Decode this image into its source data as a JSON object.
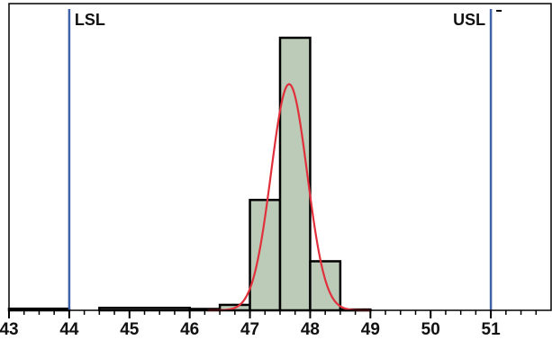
{
  "chart_data": {
    "type": "bar",
    "subtype": "histogram-with-normal-fit",
    "xlim": [
      43,
      52
    ],
    "ylim": [
      0,
      100
    ],
    "x_ticks": [
      "43",
      "44",
      "45",
      "46",
      "47",
      "48",
      "49",
      "50",
      "51"
    ],
    "bins": [
      {
        "x0": 43.0,
        "x1": 44.0,
        "value": 0.6
      },
      {
        "x0": 44.5,
        "x1": 46.0,
        "value": 0.9
      },
      {
        "x0": 46.0,
        "x1": 46.5,
        "value": 0.5
      },
      {
        "x0": 46.5,
        "x1": 47.0,
        "value": 2.0
      },
      {
        "x0": 47.0,
        "x1": 47.5,
        "value": 40.5
      },
      {
        "x0": 47.5,
        "x1": 48.0,
        "value": 100.0
      },
      {
        "x0": 48.0,
        "x1": 48.5,
        "value": 18.0
      },
      {
        "x0": 48.5,
        "x1": 49.0,
        "value": 0.3
      }
    ],
    "normal_fit": {
      "mean": 47.65,
      "sd": 0.3,
      "peak": 83
    },
    "spec_limits": [
      {
        "label": "LSL",
        "value": 44
      },
      {
        "label": "USL",
        "value": 51
      }
    ],
    "grid": false,
    "legend": "none",
    "colors": {
      "bar_fill": "#bccbb7",
      "bar_stroke": "#000000",
      "fit_line": "#e0303c",
      "spec_line": "#3f62a8",
      "frame": "#000000"
    }
  }
}
